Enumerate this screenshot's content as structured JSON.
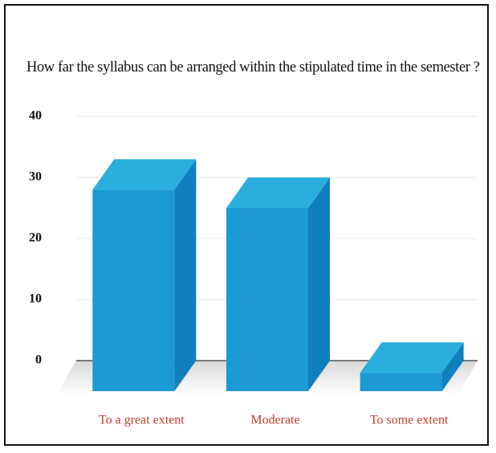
{
  "chart_data": {
    "type": "bar3d",
    "title": "How far the syllabus can be arranged within the stipulated time in the semester ?",
    "categories": [
      "To a great extent",
      "Moderate",
      "To some extent"
    ],
    "values": [
      33,
      30,
      3
    ],
    "color": "#1b9ad4",
    "ylim": [
      0,
      40
    ],
    "yticks": [
      0,
      10,
      20,
      30,
      40
    ],
    "grid": true
  }
}
